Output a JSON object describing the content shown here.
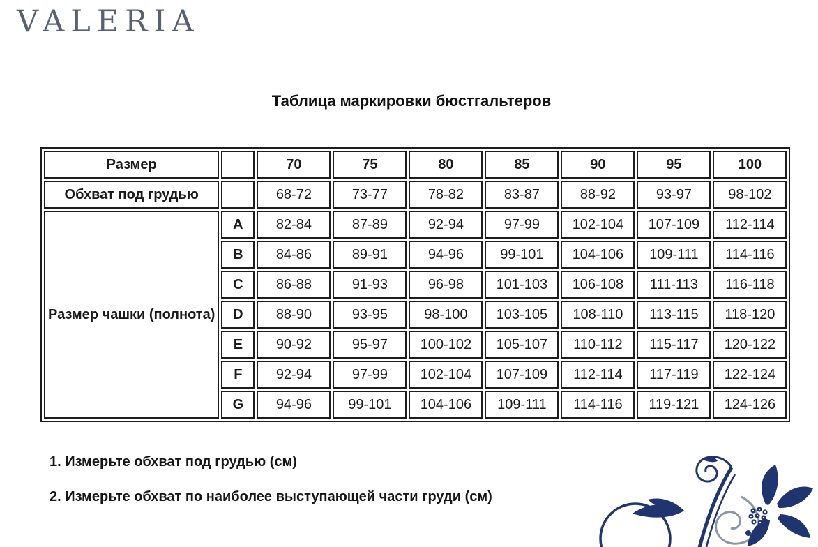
{
  "brand": {
    "logo_text": "VALERIA"
  },
  "title": "Таблица маркировки бюстгальтеров",
  "table": {
    "row_size_label": "Размер",
    "row_underbust_label": "Обхват под грудью",
    "cup_group_label": "Размер чашки (полнота)",
    "band_sizes": [
      "70",
      "75",
      "80",
      "85",
      "90",
      "95",
      "100"
    ],
    "underbust_ranges": [
      "68-72",
      "73-77",
      "78-82",
      "83-87",
      "88-92",
      "93-97",
      "98-102"
    ],
    "cup_rows": [
      {
        "letter": "A",
        "values": [
          "82-84",
          "87-89",
          "92-94",
          "97-99",
          "102-104",
          "107-109",
          "112-114"
        ]
      },
      {
        "letter": "B",
        "values": [
          "84-86",
          "89-91",
          "94-96",
          "99-101",
          "104-106",
          "109-111",
          "114-116"
        ]
      },
      {
        "letter": "C",
        "values": [
          "86-88",
          "91-93",
          "96-98",
          "101-103",
          "106-108",
          "111-113",
          "116-118"
        ]
      },
      {
        "letter": "D",
        "values": [
          "88-90",
          "93-95",
          "98-100",
          "103-105",
          "108-110",
          "113-115",
          "118-120"
        ]
      },
      {
        "letter": "E",
        "values": [
          "90-92",
          "95-97",
          "100-102",
          "105-107",
          "110-112",
          "115-117",
          "120-122"
        ]
      },
      {
        "letter": "F",
        "values": [
          "92-94",
          "97-99",
          "102-104",
          "107-109",
          "112-114",
          "117-119",
          "122-124"
        ]
      },
      {
        "letter": "G",
        "values": [
          "94-96",
          "99-101",
          "104-106",
          "109-111",
          "114-116",
          "119-121",
          "124-126"
        ]
      }
    ]
  },
  "instructions": [
    "1. Измерьте обхват под грудью (см)",
    "2. Измерьте обхват по наиболее выступающей части груди (см)"
  ],
  "icons": {
    "ornament": "floral-swirl-ornament"
  },
  "colors": {
    "peach": "#fae6c3",
    "lavender": "#c9c5dc",
    "border": "#1d1d1d",
    "text": "#1a1a1a",
    "logo_gray": "#59606f",
    "ornament_navy": "#20356f",
    "ornament_gray": "#8d95a7"
  }
}
